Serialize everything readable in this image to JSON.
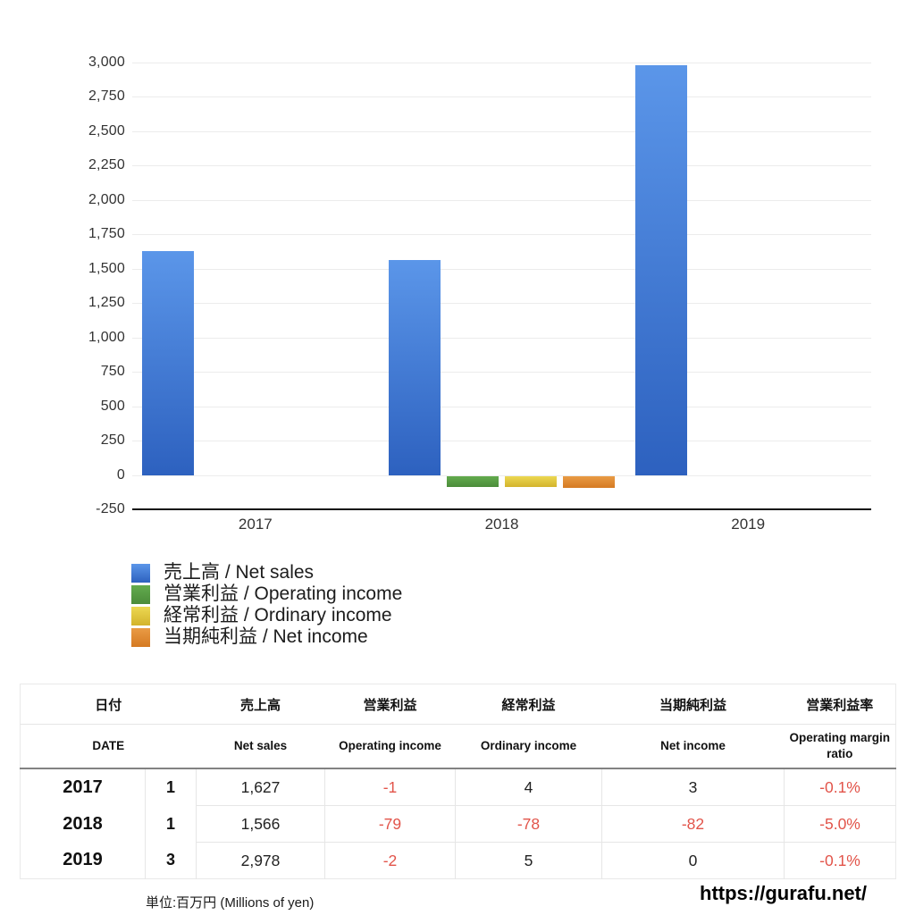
{
  "chart_data": {
    "type": "bar",
    "title": "",
    "xlabel": "",
    "ylabel": "",
    "categories": [
      "2017",
      "2018",
      "2019"
    ],
    "series": [
      {
        "name": "売上高 / Net sales",
        "key": "net-sales",
        "color_top": "#5b96e9",
        "color_bottom": "#2d61bf",
        "values": [
          1627,
          1566,
          2978
        ]
      },
      {
        "name": "営業利益 / Operating income",
        "key": "operating-income",
        "color_top": "#63ab4e",
        "color_bottom": "#4b8c3a",
        "values": [
          -1,
          -79,
          -2
        ]
      },
      {
        "name": "経常利益 / Ordinary income",
        "key": "ordinary-income",
        "color_top": "#ecd852",
        "color_bottom": "#d3b32c",
        "values": [
          4,
          -78,
          5
        ]
      },
      {
        "name": "当期純利益 / Net income",
        "key": "net-income",
        "color_top": "#e99b45",
        "color_bottom": "#d57a22",
        "values": [
          3,
          -82,
          0
        ]
      }
    ],
    "ylim": [
      -250,
      3000
    ],
    "ytick_step": 250,
    "ytick_labels": [
      "3,000",
      "2,750",
      "2,500",
      "2,250",
      "2,000",
      "1,750",
      "1,500",
      "1,250",
      "1,000",
      "750",
      "500",
      "250",
      "0",
      "-250"
    ],
    "grid": true,
    "legend_position": "bottom-left"
  },
  "table": {
    "header_jp": [
      "日付",
      "売上高",
      "営業利益",
      "経常利益",
      "当期純利益",
      "営業利益率"
    ],
    "header_en": [
      "DATE",
      "Net sales",
      "Operating income",
      "Ordinary income",
      "Net income",
      "Operating margin ratio"
    ],
    "rows": [
      {
        "year": "2017",
        "month": "1",
        "values": [
          "1,627",
          "-1",
          "4",
          "3",
          "-0.1%"
        ]
      },
      {
        "year": "2018",
        "month": "1",
        "values": [
          "1,566",
          "-79",
          "-78",
          "-82",
          "-5.0%"
        ]
      },
      {
        "year": "2019",
        "month": "3",
        "values": [
          "2,978",
          "-2",
          "5",
          "0",
          "-0.1%"
        ]
      }
    ],
    "negative_color": "#e2544a",
    "positive_color": "#222222"
  },
  "footer": {
    "unit_note": "単位:百万円 (Millions of yen)",
    "site_url": "https://gurafu.net/"
  }
}
